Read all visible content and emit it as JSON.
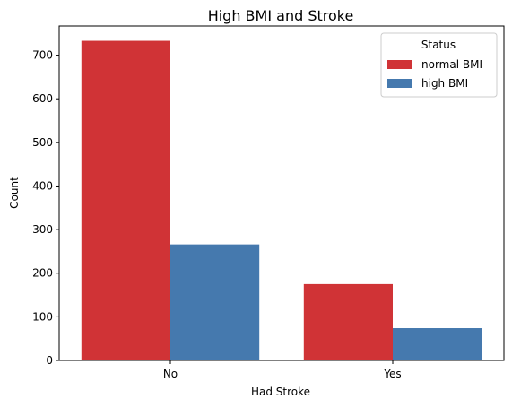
{
  "chart_data": {
    "type": "bar",
    "title": "High BMI and Stroke",
    "xlabel": "Had Stroke",
    "ylabel": "Count",
    "categories": [
      "No",
      "Yes"
    ],
    "series": [
      {
        "name": "normal BMI",
        "values": [
          733,
          175
        ],
        "color": "#d03336"
      },
      {
        "name": "high BMI",
        "values": [
          266,
          74
        ],
        "color": "#4579ae"
      }
    ],
    "ylim": [
      0,
      767
    ],
    "yticks": [
      0,
      100,
      200,
      300,
      400,
      500,
      600,
      700
    ],
    "grid": false,
    "legend": {
      "title": "Status",
      "placement": "top-right"
    }
  }
}
